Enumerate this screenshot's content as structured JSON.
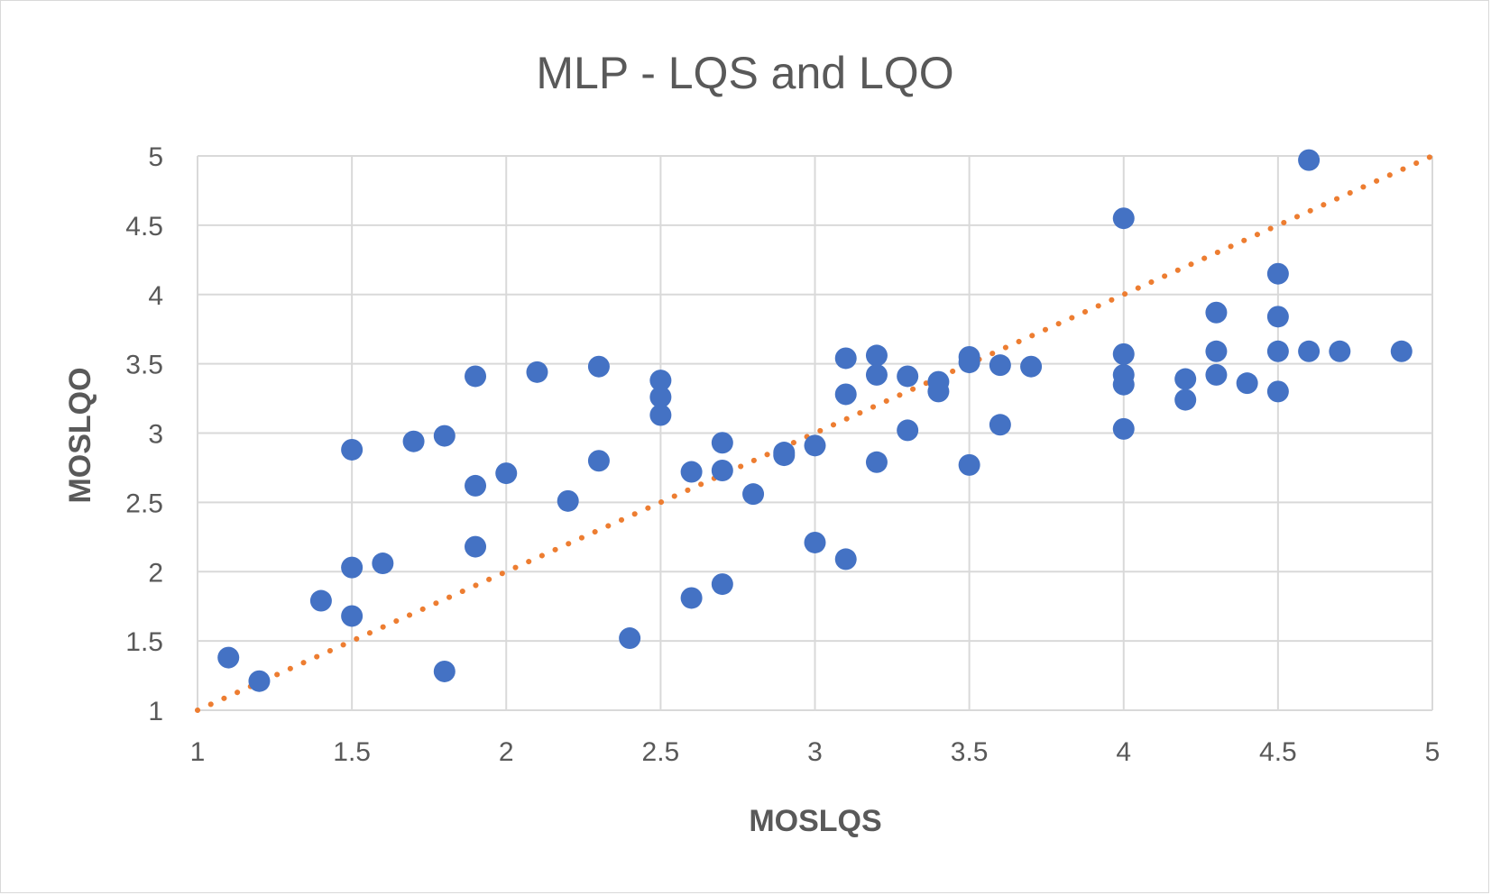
{
  "chart_data": {
    "type": "scatter",
    "title": "MLP - LQS and LQO",
    "xlabel": "MOSLQS",
    "ylabel": "MOSLQO",
    "xlim": [
      1,
      5
    ],
    "ylim": [
      1,
      5
    ],
    "x_ticks": [
      "1",
      "1.5",
      "2",
      "2.5",
      "3",
      "3.5",
      "4",
      "4.5",
      "5"
    ],
    "y_ticks": [
      "1",
      "1.5",
      "2",
      "2.5",
      "3",
      "3.5",
      "4",
      "4.5",
      "5"
    ],
    "grid": true,
    "legend": "none",
    "colors": {
      "points": "#4472c4",
      "trendline": "#ed7d31",
      "grid": "#d9d9d9",
      "text": "#595959"
    },
    "trendline": {
      "style": "dotted",
      "x": [
        1,
        5
      ],
      "y": [
        1,
        5
      ]
    },
    "series": [
      {
        "x": [
          1.1,
          1.2,
          1.4,
          1.5,
          1.5,
          1.5,
          1.6,
          1.7,
          1.8,
          1.8,
          1.9,
          1.9,
          1.9,
          2.0,
          2.1,
          2.2,
          2.3,
          2.3,
          2.4,
          2.5,
          2.5,
          2.5,
          2.6,
          2.6,
          2.7,
          2.7,
          2.7,
          2.8,
          2.9,
          2.9,
          3.0,
          3.0,
          3.1,
          3.1,
          3.1,
          3.2,
          3.2,
          3.2,
          3.3,
          3.3,
          3.4,
          3.4,
          3.5,
          3.5,
          3.5,
          3.6,
          3.6,
          3.7,
          4.0,
          4.0,
          4.0,
          4.0,
          4.0,
          4.2,
          4.2,
          4.3,
          4.3,
          4.3,
          4.4,
          4.5,
          4.5,
          4.5,
          4.5,
          4.6,
          4.6,
          4.7,
          4.9
        ],
        "y": [
          1.38,
          1.21,
          1.79,
          2.88,
          2.03,
          1.68,
          2.06,
          2.94,
          2.98,
          1.28,
          3.41,
          2.62,
          2.18,
          2.71,
          3.44,
          2.51,
          3.48,
          2.8,
          1.52,
          3.38,
          3.26,
          3.13,
          2.72,
          1.81,
          2.93,
          2.73,
          1.91,
          2.56,
          2.86,
          2.84,
          2.91,
          2.21,
          3.54,
          3.28,
          2.09,
          3.56,
          3.42,
          2.79,
          3.41,
          3.02,
          3.37,
          3.3,
          3.55,
          3.51,
          2.77,
          3.49,
          3.06,
          3.48,
          4.55,
          3.57,
          3.42,
          3.35,
          3.03,
          3.39,
          3.24,
          3.87,
          3.59,
          3.42,
          3.36,
          4.15,
          3.84,
          3.59,
          3.3,
          4.97,
          3.59,
          3.59,
          3.59
        ]
      }
    ]
  }
}
